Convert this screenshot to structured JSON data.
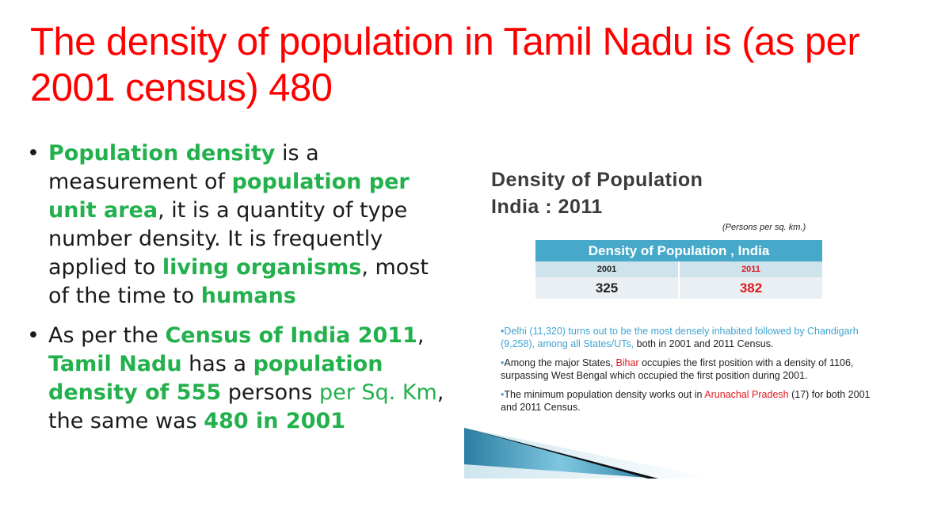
{
  "slide": {
    "title": "The density of population in Tamil Nadu is (as per 2001 census) 480"
  },
  "bullets": [
    {
      "parts": [
        {
          "text": "Population density",
          "style": "g"
        },
        {
          "text": " is a measurement of ",
          "style": ""
        },
        {
          "text": "population per unit area",
          "style": "g"
        },
        {
          "text": ", it is a quantity of type number density. It is frequently applied to ",
          "style": ""
        },
        {
          "text": "living organisms",
          "style": "g"
        },
        {
          "text": ", most of the time to ",
          "style": ""
        },
        {
          "text": "humans",
          "style": "g"
        }
      ]
    },
    {
      "parts": [
        {
          "text": "As per the ",
          "style": ""
        },
        {
          "text": "Census of India 2011",
          "style": "g"
        },
        {
          "text": ", ",
          "style": ""
        },
        {
          "text": "Tamil Nadu",
          "style": "g"
        },
        {
          "text": " has a ",
          "style": ""
        },
        {
          "text": "population density of 555",
          "style": "g"
        },
        {
          "text": " persons ",
          "style": ""
        },
        {
          "text": "per Sq. Km",
          "style": "gn"
        },
        {
          "text": ", the same was ",
          "style": ""
        },
        {
          "text": "480 in 2001",
          "style": "g"
        }
      ]
    }
  ],
  "figure": {
    "title_line1": "Density of Population",
    "title_line2": "India : 2011",
    "unit": "(Persons per sq. km.)",
    "table": {
      "header": "Density of Population , India",
      "years": [
        "2001",
        "2011"
      ],
      "values": [
        "325",
        "382"
      ]
    },
    "notes": [
      {
        "parts": [
          {
            "text": "•Delhi (11,320) turns out to be the most densely inhabited followed by Chandigarh (9,258), among all States/UTs,",
            "style": "blue"
          },
          {
            "text": " both in 2001 and 2011 Census.",
            "style": ""
          }
        ]
      },
      {
        "parts": [
          {
            "text": "•",
            "style": "blue"
          },
          {
            "text": "Among the major States, ",
            "style": ""
          },
          {
            "text": "Bihar",
            "style": "rd"
          },
          {
            "text": " occupies the first position with a density of 1106, surpassing West Bengal which occupied the first position during 2001.",
            "style": ""
          }
        ]
      },
      {
        "parts": [
          {
            "text": "•",
            "style": "blue"
          },
          {
            "text": "The minimum population density works out in ",
            "style": ""
          },
          {
            "text": "Arunachal Pradesh",
            "style": "rd"
          },
          {
            "text": " (17) for both 2001 and 2011 Census.",
            "style": ""
          }
        ]
      }
    ]
  },
  "colors": {
    "title": "#ff0000",
    "highlight_green": "#22b14c",
    "table_header": "#47a9c9",
    "note_blue": "#3fa4d2",
    "note_red": "#e0181f"
  }
}
